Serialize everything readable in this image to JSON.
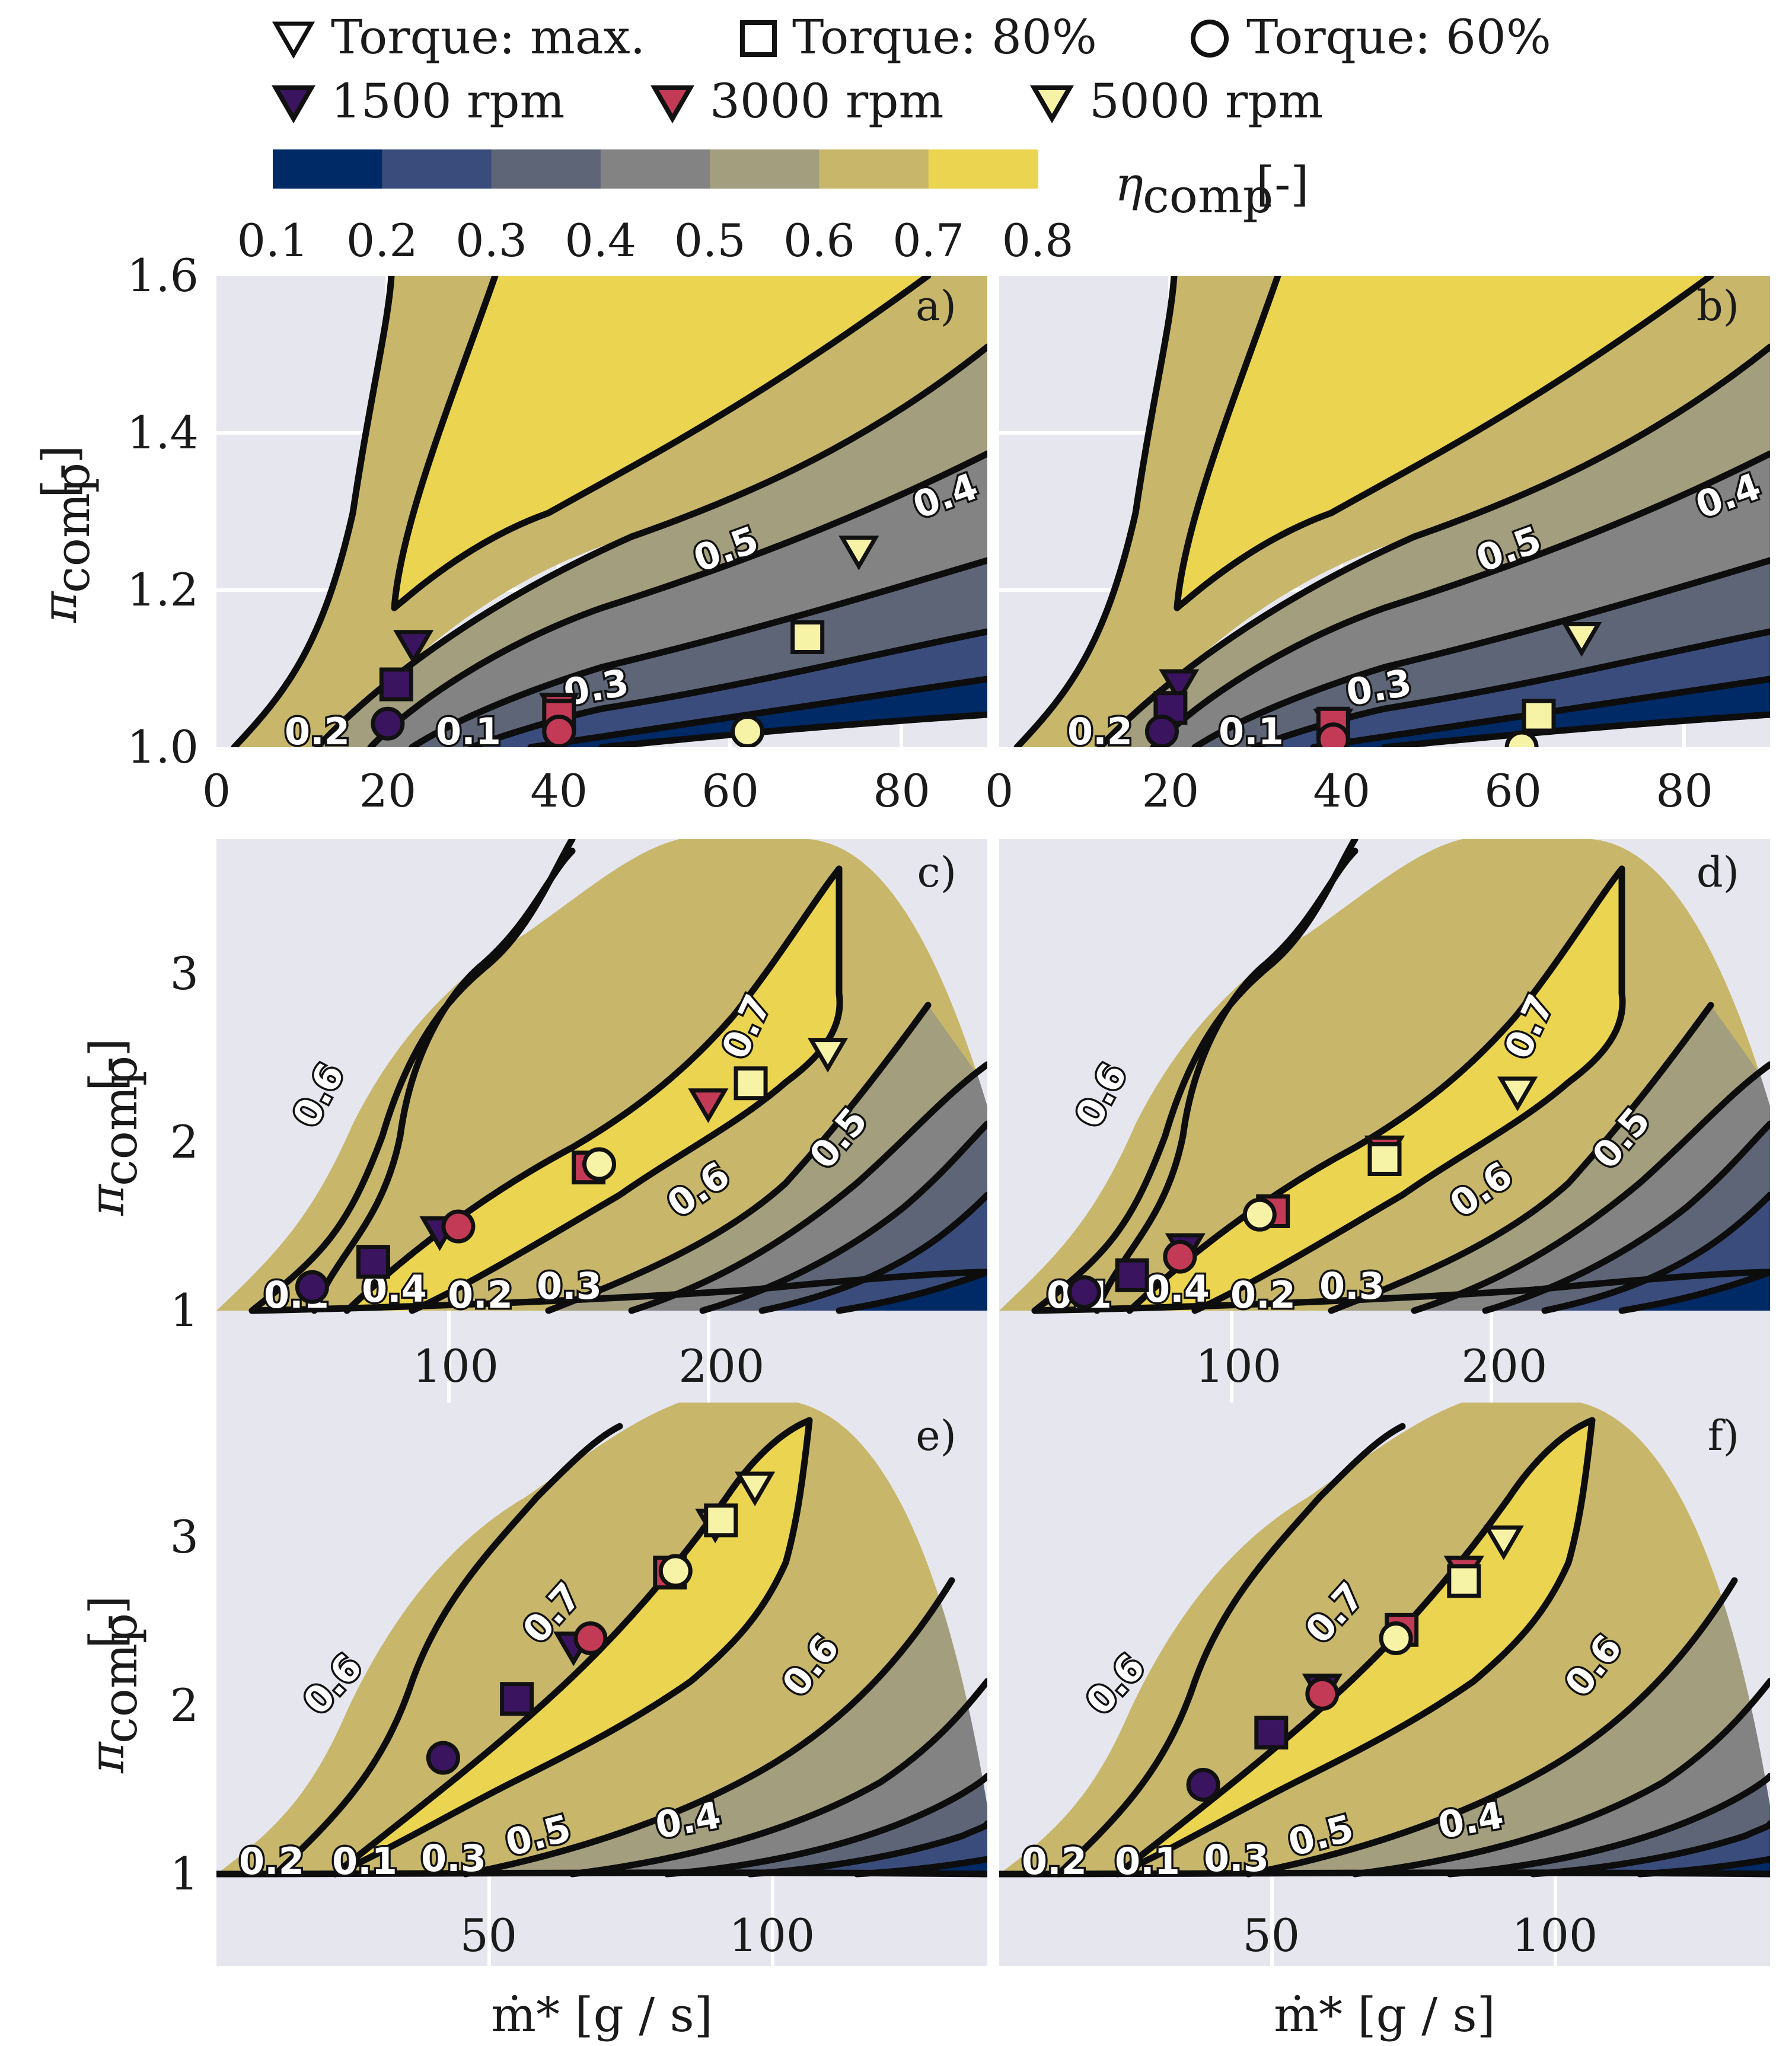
{
  "legend": {
    "items": [
      {
        "label": "Torque: max.",
        "marker": "tri-down",
        "color": "#ffffff"
      },
      {
        "label": "Torque: 80%",
        "marker": "square",
        "color": "#ffffff"
      },
      {
        "label": "Torque: 60%",
        "marker": "circle",
        "color": "#ffffff"
      },
      {
        "label": "1500 rpm",
        "marker": "tri-down",
        "color": "#3b1460"
      },
      {
        "label": "3000 rpm",
        "marker": "tri-down",
        "color": "#c23a55"
      },
      {
        "label": "5000 rpm",
        "marker": "tri-down",
        "color": "#f7f3a6"
      }
    ]
  },
  "colorbar": {
    "label_main": "η",
    "label_sub": "comp",
    "label_unit": "[-]",
    "ticks": [
      "0.1",
      "0.2",
      "0.3",
      "0.4",
      "0.5",
      "0.6",
      "0.7",
      "0.8"
    ],
    "colors": [
      "#002a66",
      "#3a4c7b",
      "#5e6577",
      "#838383",
      "#a39e7d",
      "#c8b76a",
      "#ebd44f"
    ]
  },
  "axes_labels": {
    "y_main": "π",
    "y_sub": "comp",
    "y_unit": "[-]",
    "x": "ṁ* [g / s]"
  },
  "chart_data": [
    {
      "panel": "a)",
      "type": "contour",
      "xlim": [
        0,
        90
      ],
      "ylim": [
        1.0,
        1.6
      ],
      "xticks": [
        "0",
        "20",
        "40",
        "60",
        "80"
      ],
      "yticks": [
        "1.0",
        "1.2",
        "1.4",
        "1.6"
      ],
      "contour_labels": [
        "0.2",
        "0.1",
        "0.3",
        "0.5",
        "0.4"
      ],
      "points": [
        {
          "marker": "tri-down",
          "rpm": "1500 rpm",
          "x": 23,
          "y": 1.13
        },
        {
          "marker": "square",
          "rpm": "1500 rpm",
          "x": 21,
          "y": 1.08
        },
        {
          "marker": "circle",
          "rpm": "1500 rpm",
          "x": 20,
          "y": 1.03
        },
        {
          "marker": "tri-down",
          "rpm": "3000 rpm",
          "x": 40,
          "y": 1.05
        },
        {
          "marker": "square",
          "rpm": "3000 rpm",
          "x": 40,
          "y": 1.04
        },
        {
          "marker": "circle",
          "rpm": "3000 rpm",
          "x": 40,
          "y": 1.02
        },
        {
          "marker": "tri-down",
          "rpm": "5000 rpm",
          "x": 75,
          "y": 1.25
        },
        {
          "marker": "square",
          "rpm": "5000 rpm",
          "x": 69,
          "y": 1.14
        },
        {
          "marker": "circle",
          "rpm": "5000 rpm",
          "x": 62,
          "y": 1.02
        }
      ]
    },
    {
      "panel": "b)",
      "type": "contour",
      "xlim": [
        0,
        90
      ],
      "ylim": [
        1.0,
        1.6
      ],
      "xticks": [
        "0",
        "20",
        "40",
        "60",
        "80"
      ],
      "yticks": [],
      "contour_labels": [
        "0.2",
        "0.1",
        "0.3",
        "0.5",
        "0.4"
      ],
      "points": [
        {
          "marker": "tri-down",
          "rpm": "1500 rpm",
          "x": 21,
          "y": 1.08
        },
        {
          "marker": "square",
          "rpm": "1500 rpm",
          "x": 20,
          "y": 1.05
        },
        {
          "marker": "circle",
          "rpm": "1500 rpm",
          "x": 19,
          "y": 1.02
        },
        {
          "marker": "tri-down",
          "rpm": "3000 rpm",
          "x": 39,
          "y": 1.03
        },
        {
          "marker": "square",
          "rpm": "3000 rpm",
          "x": 39,
          "y": 1.03
        },
        {
          "marker": "circle",
          "rpm": "3000 rpm",
          "x": 39,
          "y": 1.01
        },
        {
          "marker": "tri-down",
          "rpm": "5000 rpm",
          "x": 68,
          "y": 1.14
        },
        {
          "marker": "square",
          "rpm": "5000 rpm",
          "x": 63,
          "y": 1.04
        },
        {
          "marker": "circle",
          "rpm": "5000 rpm",
          "x": 61,
          "y": 1.0
        }
      ]
    },
    {
      "panel": "c)",
      "type": "contour",
      "xlim": [
        10,
        300
      ],
      "ylim": [
        1,
        3.8
      ],
      "xticks": [
        "100",
        "200"
      ],
      "yticks": [
        "1",
        "2",
        "3"
      ],
      "contour_labels": [
        "0.6",
        "0.1",
        "0.4",
        "0.2",
        "0.3",
        "0.6",
        "0.7",
        "0.5"
      ],
      "points": [
        {
          "marker": "tri-down",
          "rpm": "1500 rpm",
          "x": 94,
          "y": 1.47
        },
        {
          "marker": "square",
          "rpm": "1500 rpm",
          "x": 69,
          "y": 1.29
        },
        {
          "marker": "circle",
          "rpm": "1500 rpm",
          "x": 46,
          "y": 1.14
        },
        {
          "marker": "tri-down",
          "rpm": "3000 rpm",
          "x": 195,
          "y": 2.23
        },
        {
          "marker": "square",
          "rpm": "3000 rpm",
          "x": 150,
          "y": 1.85
        },
        {
          "marker": "circle",
          "rpm": "3000 rpm",
          "x": 101,
          "y": 1.5
        },
        {
          "marker": "tri-down",
          "rpm": "5000 rpm",
          "x": 240,
          "y": 2.53
        },
        {
          "marker": "square",
          "rpm": "5000 rpm",
          "x": 211,
          "y": 2.35
        },
        {
          "marker": "circle",
          "rpm": "5000 rpm",
          "x": 154,
          "y": 1.87
        }
      ]
    },
    {
      "panel": "d)",
      "type": "contour",
      "xlim": [
        10,
        300
      ],
      "ylim": [
        1,
        3.8
      ],
      "xticks": [
        "100",
        "200"
      ],
      "yticks": [],
      "contour_labels": [
        "0.6",
        "0.1",
        "0.4",
        "0.2",
        "0.3",
        "0.6",
        "0.7",
        "0.5"
      ],
      "points": [
        {
          "marker": "tri-down",
          "rpm": "1500 rpm",
          "x": 80,
          "y": 1.37
        },
        {
          "marker": "square",
          "rpm": "1500 rpm",
          "x": 60,
          "y": 1.21
        },
        {
          "marker": "circle",
          "rpm": "1500 rpm",
          "x": 42,
          "y": 1.11
        },
        {
          "marker": "tri-down",
          "rpm": "3000 rpm",
          "x": 155,
          "y": 1.95
        },
        {
          "marker": "square",
          "rpm": "3000 rpm",
          "x": 113,
          "y": 1.59
        },
        {
          "marker": "circle",
          "rpm": "3000 rpm",
          "x": 78,
          "y": 1.32
        },
        {
          "marker": "tri-down",
          "rpm": "5000 rpm",
          "x": 205,
          "y": 2.3
        },
        {
          "marker": "square",
          "rpm": "5000 rpm",
          "x": 155,
          "y": 1.9
        },
        {
          "marker": "circle",
          "rpm": "5000 rpm",
          "x": 108,
          "y": 1.57
        }
      ]
    },
    {
      "panel": "e)",
      "type": "contour",
      "xlim": [
        2,
        138
      ],
      "ylim": [
        1,
        3.8
      ],
      "xticks": [
        "50",
        "100"
      ],
      "yticks": [
        "1",
        "2",
        "3"
      ],
      "contour_labels": [
        "0.2",
        "0.1",
        "0.3",
        "0.6",
        "0.7",
        "0.5",
        "0.4",
        "0.6"
      ],
      "points": [
        {
          "marker": "tri-down",
          "rpm": "1500 rpm",
          "x": 65,
          "y": 2.35
        },
        {
          "marker": "square",
          "rpm": "1500 rpm",
          "x": 55,
          "y": 2.04
        },
        {
          "marker": "circle",
          "rpm": "1500 rpm",
          "x": 42,
          "y": 1.69
        },
        {
          "marker": "tri-down",
          "rpm": "3000 rpm",
          "x": 90,
          "y": 3.08
        },
        {
          "marker": "square",
          "rpm": "3000 rpm",
          "x": 82,
          "y": 2.79
        },
        {
          "marker": "circle",
          "rpm": "3000 rpm",
          "x": 68,
          "y": 2.4
        },
        {
          "marker": "tri-down",
          "rpm": "5000 rpm",
          "x": 97,
          "y": 3.3
        },
        {
          "marker": "square",
          "rpm": "5000 rpm",
          "x": 91,
          "y": 3.1
        },
        {
          "marker": "circle",
          "rpm": "5000 rpm",
          "x": 83,
          "y": 2.8
        }
      ]
    },
    {
      "panel": "f)",
      "type": "contour",
      "xlim": [
        2,
        138
      ],
      "ylim": [
        1,
        3.8
      ],
      "xticks": [
        "50",
        "100"
      ],
      "yticks": [],
      "contour_labels": [
        "0.2",
        "0.1",
        "0.3",
        "0.6",
        "0.7",
        "0.5",
        "0.4",
        "0.6"
      ],
      "points": [
        {
          "marker": "tri-down",
          "rpm": "1500 rpm",
          "x": 59,
          "y": 2.1
        },
        {
          "marker": "square",
          "rpm": "1500 rpm",
          "x": 50,
          "y": 1.84
        },
        {
          "marker": "circle",
          "rpm": "1500 rpm",
          "x": 38,
          "y": 1.53
        },
        {
          "marker": "tri-down",
          "rpm": "3000 rpm",
          "x": 84,
          "y": 2.8
        },
        {
          "marker": "square",
          "rpm": "3000 rpm",
          "x": 73,
          "y": 2.45
        },
        {
          "marker": "circle",
          "rpm": "3000 rpm",
          "x": 59,
          "y": 2.07
        },
        {
          "marker": "tri-down",
          "rpm": "5000 rpm",
          "x": 91,
          "y": 2.98
        },
        {
          "marker": "square",
          "rpm": "5000 rpm",
          "x": 84,
          "y": 2.74
        },
        {
          "marker": "circle",
          "rpm": "5000 rpm",
          "x": 72,
          "y": 2.4
        }
      ]
    }
  ]
}
